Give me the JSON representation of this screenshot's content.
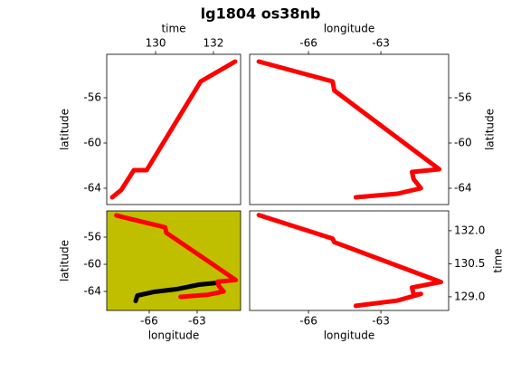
{
  "title": "lg1804 os38nb",
  "chart_data": [
    {
      "type": "line",
      "xlabel": "time",
      "ylabel": "latitude",
      "x_axis_position": "top",
      "y_axis_position": "left",
      "xlim": [
        128.31,
        132.94
      ],
      "ylim": [
        -65.44,
        -52.16
      ],
      "xticks": [
        130,
        132
      ],
      "yticks": [
        -56,
        -60,
        -64
      ],
      "series": [
        {
          "color": "#ff0000",
          "x": [
            128.5,
            128.81,
            129.25,
            129.69,
            131.56,
            132.75
          ],
          "values": [
            -64.8,
            -64.16,
            -62.4,
            -62.4,
            -54.56,
            -52.8
          ]
        }
      ]
    },
    {
      "type": "line",
      "xlabel": "longitude",
      "ylabel": "latitude",
      "x_axis_position": "top",
      "y_axis_position": "right",
      "xlim": [
        -68.44,
        -60.19
      ],
      "ylim": [
        -65.44,
        -52.16
      ],
      "xticks": [
        -66,
        -63
      ],
      "yticks": [
        -56,
        -60,
        -64
      ],
      "series": [
        {
          "color": "#ff0000",
          "x": [
            -68.06,
            -65.0,
            -64.93,
            -60.58,
            -61.71,
            -61.64,
            -61.34,
            -62.31,
            -64.04
          ],
          "values": [
            -52.8,
            -54.56,
            -55.36,
            -62.32,
            -62.56,
            -63.2,
            -64.0,
            -64.48,
            -64.8
          ]
        }
      ]
    },
    {
      "type": "line",
      "xlabel": "longitude",
      "ylabel": "latitude",
      "x_axis_position": "bottom",
      "y_axis_position": "left",
      "background": "#bfbf00",
      "xlim": [
        -68.66,
        -60.28
      ],
      "ylim": [
        -66.8,
        -52.13
      ],
      "xticks": [
        -66,
        -63
      ],
      "yticks": [
        -56,
        -60,
        -64
      ],
      "series": [
        {
          "color": "#000000",
          "x": [
            -66.85,
            -66.74,
            -65.72,
            -64.3,
            -62.89,
            -61.75
          ],
          "values": [
            -65.4,
            -64.6,
            -64.07,
            -63.67,
            -63.0,
            -62.73
          ]
        },
        {
          "color": "#ff0000",
          "x": [
            -68.06,
            -65.0,
            -64.93,
            -60.58,
            -61.71,
            -61.64,
            -61.34,
            -62.31,
            -64.04
          ],
          "values": [
            -52.8,
            -54.56,
            -55.36,
            -62.32,
            -62.56,
            -63.2,
            -64.0,
            -64.48,
            -64.8
          ]
        }
      ]
    },
    {
      "type": "line",
      "xlabel": "longitude",
      "ylabel": "time",
      "x_axis_position": "bottom",
      "y_axis_position": "right",
      "xlim": [
        -68.44,
        -60.19
      ],
      "ylim": [
        128.38,
        132.9
      ],
      "xticks": [
        -66,
        -63
      ],
      "yticks": [
        {
          "value": 132,
          "label": "132.0"
        },
        130.5,
        {
          "value": 129,
          "label": "129.0"
        }
      ],
      "series": [
        {
          "color": "#ff0000",
          "x": [
            -68.06,
            -65.0,
            -64.93,
            -60.51,
            -61.71,
            -61.64,
            -61.34,
            -62.31,
            -64.04
          ],
          "values": [
            132.71,
            131.64,
            131.48,
            129.67,
            129.42,
            129.09,
            129.13,
            128.83,
            128.59
          ]
        }
      ]
    }
  ]
}
